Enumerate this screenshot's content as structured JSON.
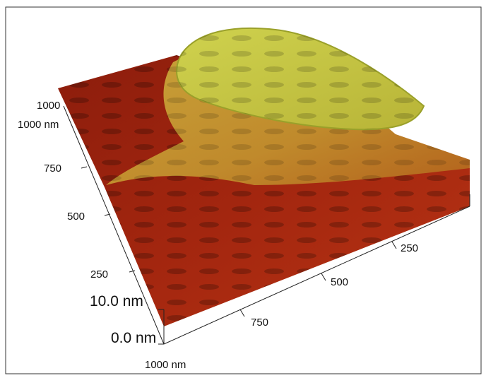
{
  "left_axis": {
    "labels": [
      "1000",
      "1000 nm",
      "750",
      "500",
      "250"
    ]
  },
  "z_axis": {
    "labels": [
      "10.0 nm",
      "0.0 nm"
    ]
  },
  "front_axis": {
    "labels": [
      "1000 nm",
      "750",
      "500",
      "250"
    ]
  }
}
